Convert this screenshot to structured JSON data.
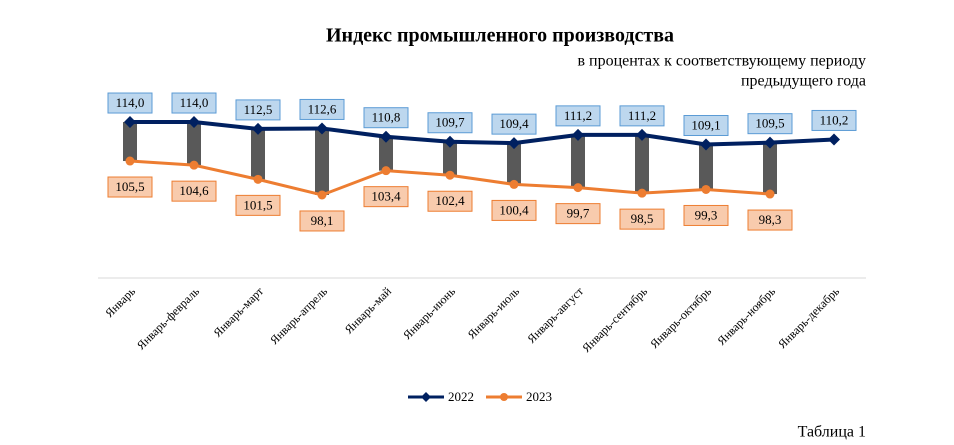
{
  "chart_data": {
    "type": "line",
    "title": "Индекс промышленного производства",
    "subtitle": [
      "в процентах к соответствующему периоду",
      "предыдущего года"
    ],
    "caption": "Таблица 1",
    "categories": [
      "Январь",
      "Январь-февраль",
      "Январь-март",
      "Январь-апрель",
      "Январь-май",
      "Январь-июнь",
      "Январь-июль",
      "Январь-август",
      "Январь-сентябрь",
      "Январь-октябрь",
      "Январь-ноябрь",
      "Январь-декабрь"
    ],
    "series": [
      {
        "name": "2022",
        "color": "#002060",
        "values": [
          114.0,
          114.0,
          112.5,
          112.6,
          110.8,
          109.7,
          109.4,
          111.2,
          111.2,
          109.1,
          109.5,
          110.2
        ],
        "value_labels": [
          "114,0",
          "114,0",
          "112,5",
          "112,6",
          "110,8",
          "109,7",
          "109,4",
          "111,2",
          "111,2",
          "109,1",
          "109,5",
          "110,2"
        ]
      },
      {
        "name": "2023",
        "color": "#ed7d31",
        "values": [
          105.5,
          104.6,
          101.5,
          98.1,
          103.4,
          102.4,
          100.4,
          99.7,
          98.5,
          99.3,
          98.3,
          null
        ],
        "value_labels": [
          "105,5",
          "104,6",
          "101,5",
          "98,1",
          "103,4",
          "102,4",
          "100,4",
          "99,7",
          "98,5",
          "99,3",
          "98,3",
          null
        ]
      }
    ],
    "ylim": [
      80,
      120
    ],
    "high_low_lines": true,
    "legend": "bottom"
  }
}
